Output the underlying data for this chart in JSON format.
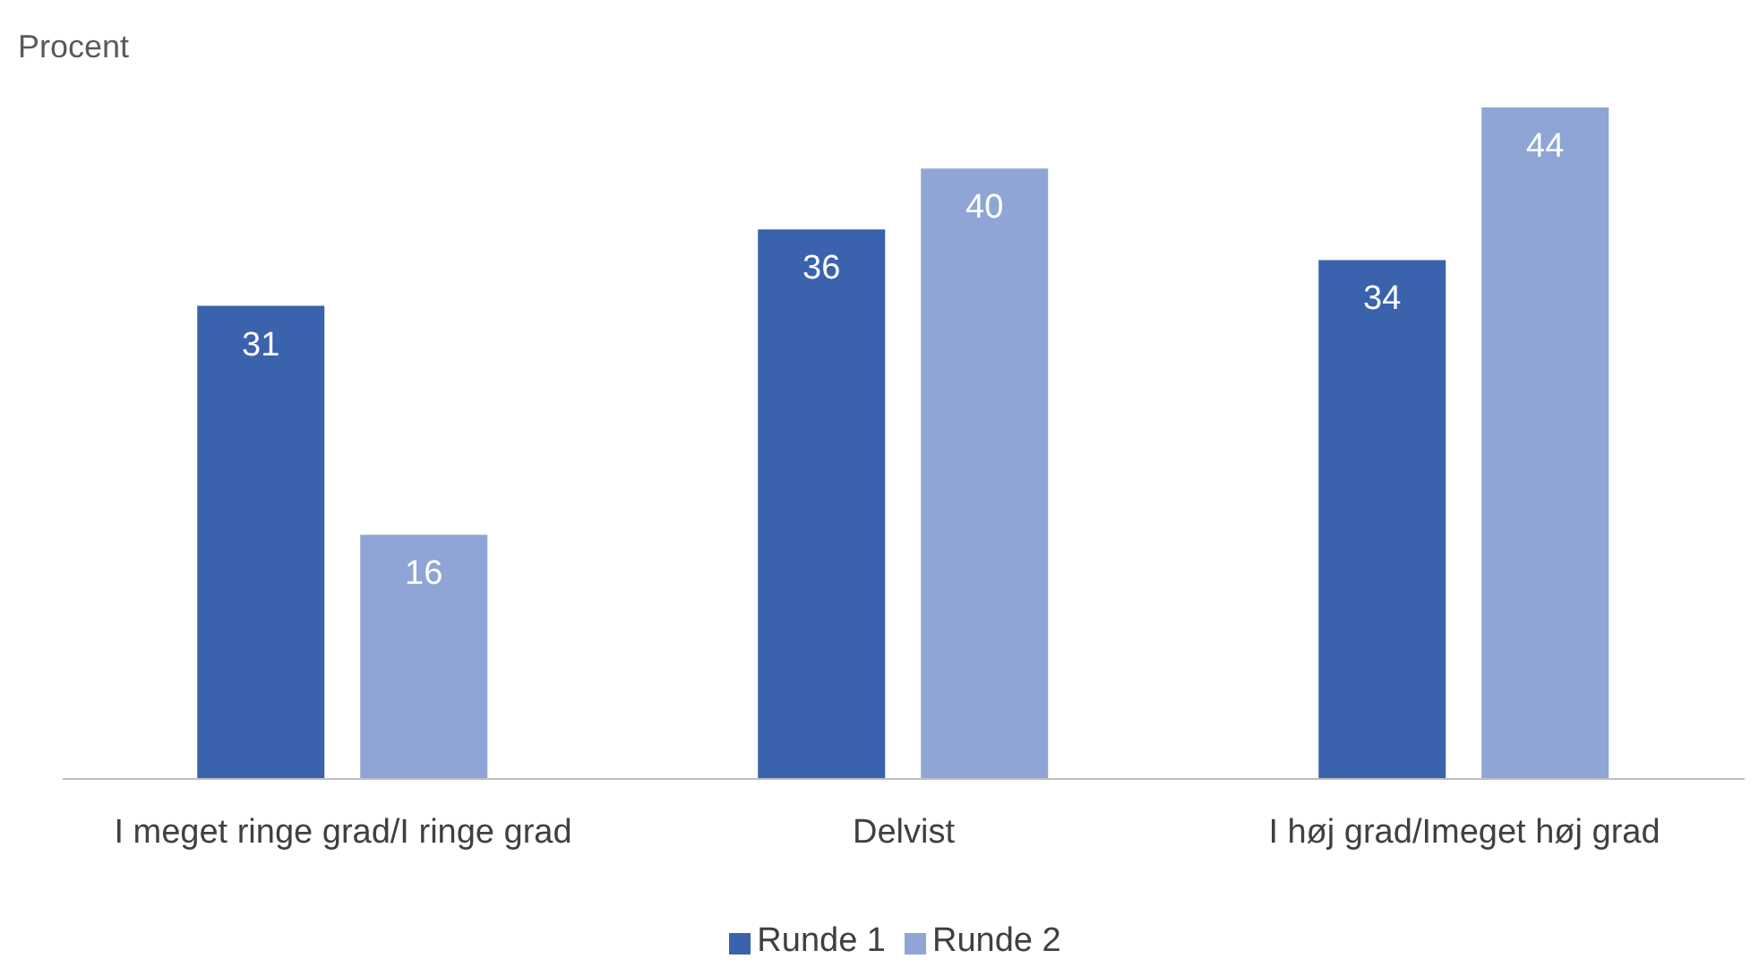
{
  "chart_data": {
    "type": "bar",
    "ylabel": "Procent",
    "categories": [
      "I meget ringe grad/I ringe grad",
      "Delvist",
      "I høj grad/Imeget høj grad"
    ],
    "series": [
      {
        "name": "Runde 1",
        "color": "#3a62ad",
        "values": [
          31,
          36,
          34
        ]
      },
      {
        "name": "Runde 2",
        "color": "#8fa5d5",
        "values": [
          16,
          40,
          44
        ]
      }
    ],
    "data_labels": true,
    "legend": "bottom",
    "grid": false
  }
}
